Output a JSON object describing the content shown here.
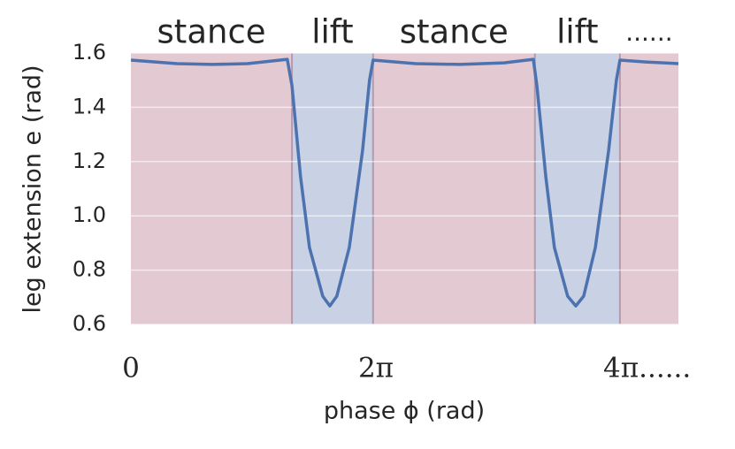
{
  "chart_data": {
    "type": "line",
    "xlabel": "phase ϕ (rad)",
    "ylabel": "leg extension e (rad)",
    "x": [
      0,
      1.18,
      2.09,
      2.99,
      4.01,
      4.13,
      4.35,
      4.58,
      4.92,
      5.1,
      5.28,
      5.6,
      5.94,
      6.12,
      6.21,
      7.3,
      8.44,
      9.57,
      10.32,
      10.41,
      10.64,
      10.86,
      11.2,
      11.41,
      11.61,
      11.91,
      12.25,
      12.45,
      12.54,
      13.2,
      14.04
    ],
    "series": [
      {
        "color": "#4c72b0",
        "values": [
          1.574,
          1.561,
          1.558,
          1.561,
          1.577,
          1.48,
          1.144,
          0.883,
          0.704,
          0.668,
          0.704,
          0.883,
          1.24,
          1.5,
          1.574,
          1.561,
          1.558,
          1.564,
          1.577,
          1.48,
          1.144,
          0.883,
          0.704,
          0.668,
          0.704,
          0.883,
          1.24,
          1.5,
          1.574,
          1.567,
          1.561
        ]
      }
    ],
    "regions": [
      {
        "label": "stance",
        "start": 0,
        "end": 4.13,
        "color": "#e3c9d2"
      },
      {
        "label": "lift",
        "start": 4.13,
        "end": 6.21,
        "color": "#c9d1e4"
      },
      {
        "label": "stance",
        "start": 6.21,
        "end": 10.36,
        "color": "#e3c9d2"
      },
      {
        "label": "lift",
        "start": 10.36,
        "end": 12.54,
        "color": "#c9d1e4"
      },
      {
        "label": "......",
        "start": 12.54,
        "end": 14.04,
        "color": "#e3c9d2"
      }
    ],
    "xlim": [
      0,
      14.04
    ],
    "xticks": [
      0,
      {
        "value": 6.2832,
        "label": "2π"
      },
      {
        "value": 12.5664,
        "label": "4π......"
      }
    ],
    "ylim": [
      0.6,
      1.6
    ],
    "yticks": [
      0.6,
      0.8,
      {
        "value": 1.0,
        "label": "1.0"
      },
      1.2,
      1.4,
      1.6
    ],
    "grid": true
  }
}
